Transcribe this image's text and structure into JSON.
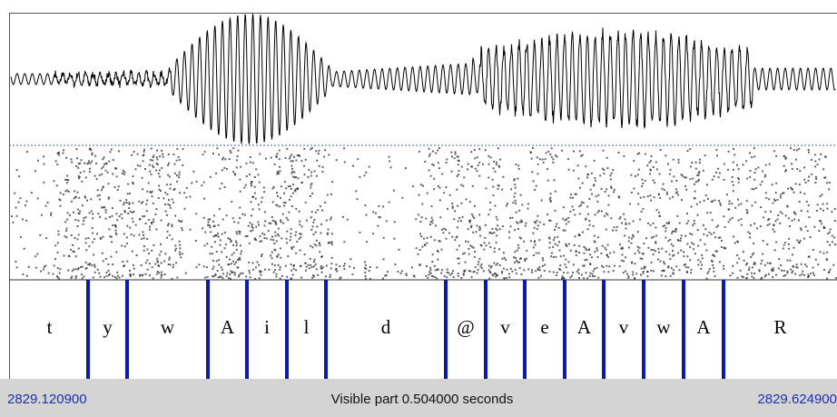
{
  "tier": {
    "labels": [
      "t",
      "y",
      "w",
      "A",
      "i",
      "l",
      "d",
      "@",
      "v",
      "e",
      "A",
      "v",
      "w",
      "A",
      "R"
    ]
  },
  "footer": {
    "start": "2829.120900",
    "visible": "Visible part 0.504000 seconds",
    "end": "2829.624900"
  }
}
